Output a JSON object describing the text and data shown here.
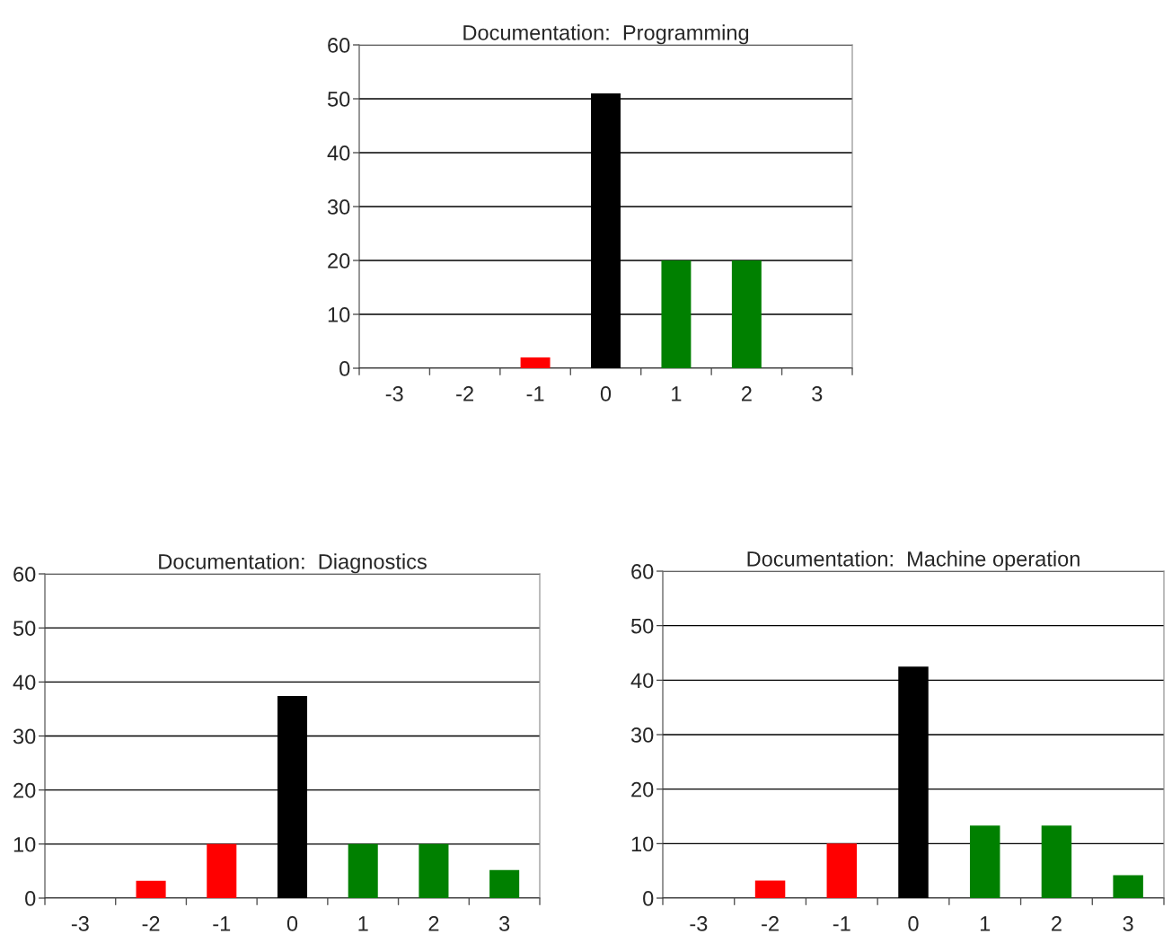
{
  "chart_data": [
    {
      "type": "bar",
      "title": "Documentation:  Programming",
      "categories": [
        "-3",
        "-2",
        "-1",
        "0",
        "1",
        "2",
        "3"
      ],
      "values": [
        0,
        0,
        2,
        51,
        20,
        20,
        0
      ],
      "colors": [
        "#ff0000",
        "#ff0000",
        "#ff0000",
        "#000000",
        "#008000",
        "#008000",
        "#008000"
      ],
      "ylim": [
        0,
        60
      ],
      "yticks": [
        0,
        10,
        20,
        30,
        40,
        50,
        60
      ],
      "grid": "y"
    },
    {
      "type": "bar",
      "title": "Documentation:  Diagnostics",
      "categories": [
        "-3",
        "-2",
        "-1",
        "0",
        "1",
        "2",
        "3"
      ],
      "values": [
        0,
        3.2,
        10,
        37.4,
        10,
        10,
        5.2
      ],
      "colors": [
        "#ff0000",
        "#ff0000",
        "#ff0000",
        "#000000",
        "#008000",
        "#008000",
        "#008000"
      ],
      "ylim": [
        0,
        60
      ],
      "yticks": [
        0,
        10,
        20,
        30,
        40,
        50,
        60
      ],
      "grid": "y"
    },
    {
      "type": "bar",
      "title": "Documentation:  Machine operation",
      "categories": [
        "-3",
        "-2",
        "-1",
        "0",
        "1",
        "2",
        "3"
      ],
      "values": [
        0,
        3.2,
        10,
        42.5,
        13.3,
        13.3,
        4.2
      ],
      "colors": [
        "#ff0000",
        "#ff0000",
        "#ff0000",
        "#000000",
        "#008000",
        "#008000",
        "#008000"
      ],
      "ylim": [
        0,
        60
      ],
      "yticks": [
        0,
        10,
        20,
        30,
        40,
        50,
        60
      ],
      "grid": "y"
    }
  ]
}
